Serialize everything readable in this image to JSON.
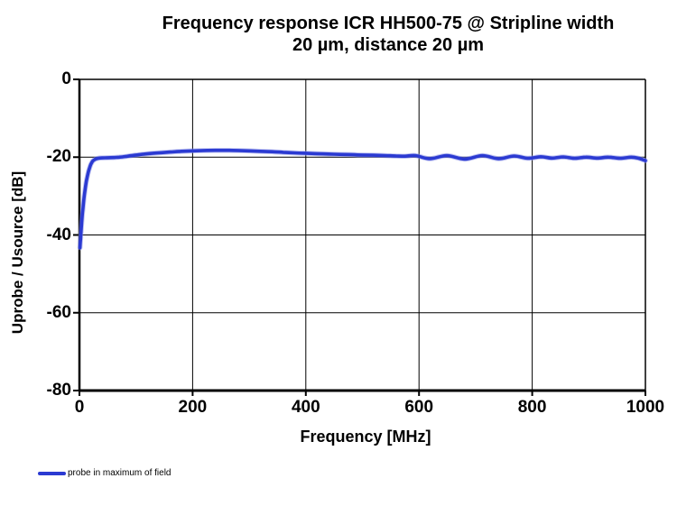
{
  "title": {
    "line1": "Frequency response ICR HH500-75 @ Stripline width",
    "line2": "20 µm, distance 20 µm"
  },
  "axes": {
    "x_label": "Frequency [MHz]",
    "y_label": "Uprobe / Usource [dB]",
    "x_ticks": [
      "0",
      "200",
      "400",
      "600",
      "800",
      "1000"
    ],
    "y_ticks": [
      "0",
      "-20",
      "-40",
      "-60",
      "-80"
    ]
  },
  "legend": {
    "items": [
      {
        "label": "probe in maximum of field",
        "color": "#2b3ad2"
      }
    ]
  },
  "colors": {
    "line": "#2b3ad2",
    "line_glow": "#8a92e8",
    "axis": "#000000",
    "grid": "#000000",
    "background": "#ffffff"
  },
  "chart_data": {
    "type": "line",
    "title": "Frequency response ICR HH500-75 @ Stripline width 20 µm, distance 20 µm",
    "xlabel": "Frequency [MHz]",
    "ylabel": "Uprobe / Usource [dB]",
    "xlim": [
      0,
      1000
    ],
    "ylim": [
      -80,
      0
    ],
    "x_tick_values": [
      0,
      200,
      400,
      600,
      800,
      1000
    ],
    "y_tick_values": [
      0,
      -20,
      -40,
      -60,
      -80
    ],
    "grid": true,
    "legend_position": "bottom-left",
    "series": [
      {
        "name": "probe in maximum of field",
        "color": "#2b3ad2",
        "points": [
          [
            1,
            -43.3
          ],
          [
            2,
            -41.0
          ],
          [
            3,
            -38.8
          ],
          [
            4,
            -36.8
          ],
          [
            5,
            -35.0
          ],
          [
            6,
            -33.4
          ],
          [
            8,
            -30.6
          ],
          [
            10,
            -28.3
          ],
          [
            12,
            -26.4
          ],
          [
            14,
            -24.9
          ],
          [
            16,
            -23.7
          ],
          [
            18,
            -22.7
          ],
          [
            20,
            -21.9
          ],
          [
            23,
            -21.1
          ],
          [
            26,
            -20.7
          ],
          [
            30,
            -20.4
          ],
          [
            35,
            -20.25
          ],
          [
            40,
            -20.2
          ],
          [
            50,
            -20.15
          ],
          [
            60,
            -20.1
          ],
          [
            70,
            -20.0
          ],
          [
            80,
            -19.85
          ],
          [
            90,
            -19.65
          ],
          [
            100,
            -19.45
          ],
          [
            115,
            -19.2
          ],
          [
            130,
            -19.0
          ],
          [
            145,
            -18.85
          ],
          [
            160,
            -18.7
          ],
          [
            180,
            -18.5
          ],
          [
            200,
            -18.4
          ],
          [
            220,
            -18.3
          ],
          [
            240,
            -18.25
          ],
          [
            260,
            -18.25
          ],
          [
            280,
            -18.3
          ],
          [
            300,
            -18.4
          ],
          [
            320,
            -18.5
          ],
          [
            340,
            -18.6
          ],
          [
            360,
            -18.75
          ],
          [
            380,
            -18.9
          ],
          [
            400,
            -19.0
          ],
          [
            420,
            -19.1
          ],
          [
            440,
            -19.2
          ],
          [
            460,
            -19.3
          ],
          [
            480,
            -19.35
          ],
          [
            500,
            -19.45
          ],
          [
            520,
            -19.5
          ],
          [
            540,
            -19.6
          ],
          [
            560,
            -19.7
          ],
          [
            575,
            -19.75
          ],
          [
            594,
            -19.6
          ],
          [
            619,
            -20.4
          ],
          [
            649,
            -19.6
          ],
          [
            681,
            -20.5
          ],
          [
            712,
            -19.6
          ],
          [
            741,
            -20.4
          ],
          [
            768,
            -19.7
          ],
          [
            792,
            -20.3
          ],
          [
            815,
            -19.9
          ],
          [
            835,
            -20.25
          ],
          [
            855,
            -19.95
          ],
          [
            875,
            -20.3
          ],
          [
            895,
            -20.0
          ],
          [
            915,
            -20.25
          ],
          [
            935,
            -20.0
          ],
          [
            955,
            -20.3
          ],
          [
            975,
            -20.0
          ],
          [
            988,
            -20.3
          ],
          [
            1000,
            -20.9
          ]
        ]
      }
    ]
  }
}
